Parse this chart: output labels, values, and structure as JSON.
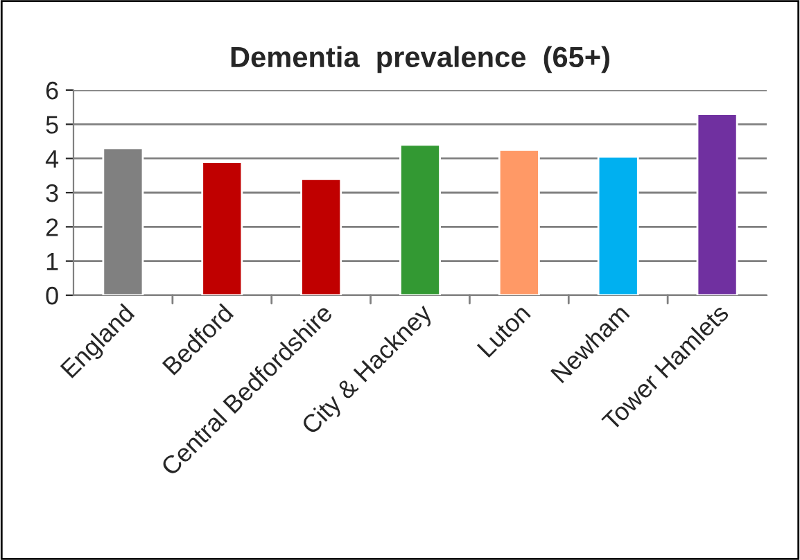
{
  "chart_data": {
    "type": "bar",
    "title": "Dementia  prevalence  (65+)",
    "categories": [
      "England",
      "Bedford",
      "Central Bedfordshire",
      "City & Hackney",
      "Luton",
      "Newham",
      "Tower Hamlets"
    ],
    "values": [
      4.3,
      3.9,
      3.4,
      4.4,
      4.25,
      4.05,
      5.3
    ],
    "colors": [
      "#808080",
      "#c00000",
      "#c00000",
      "#339933",
      "#ff9966",
      "#00b0f0",
      "#7030a0"
    ],
    "ylim": [
      0,
      6
    ],
    "yticks": [
      0,
      1,
      2,
      3,
      4,
      5,
      6
    ],
    "grid": "y",
    "legend": false
  }
}
